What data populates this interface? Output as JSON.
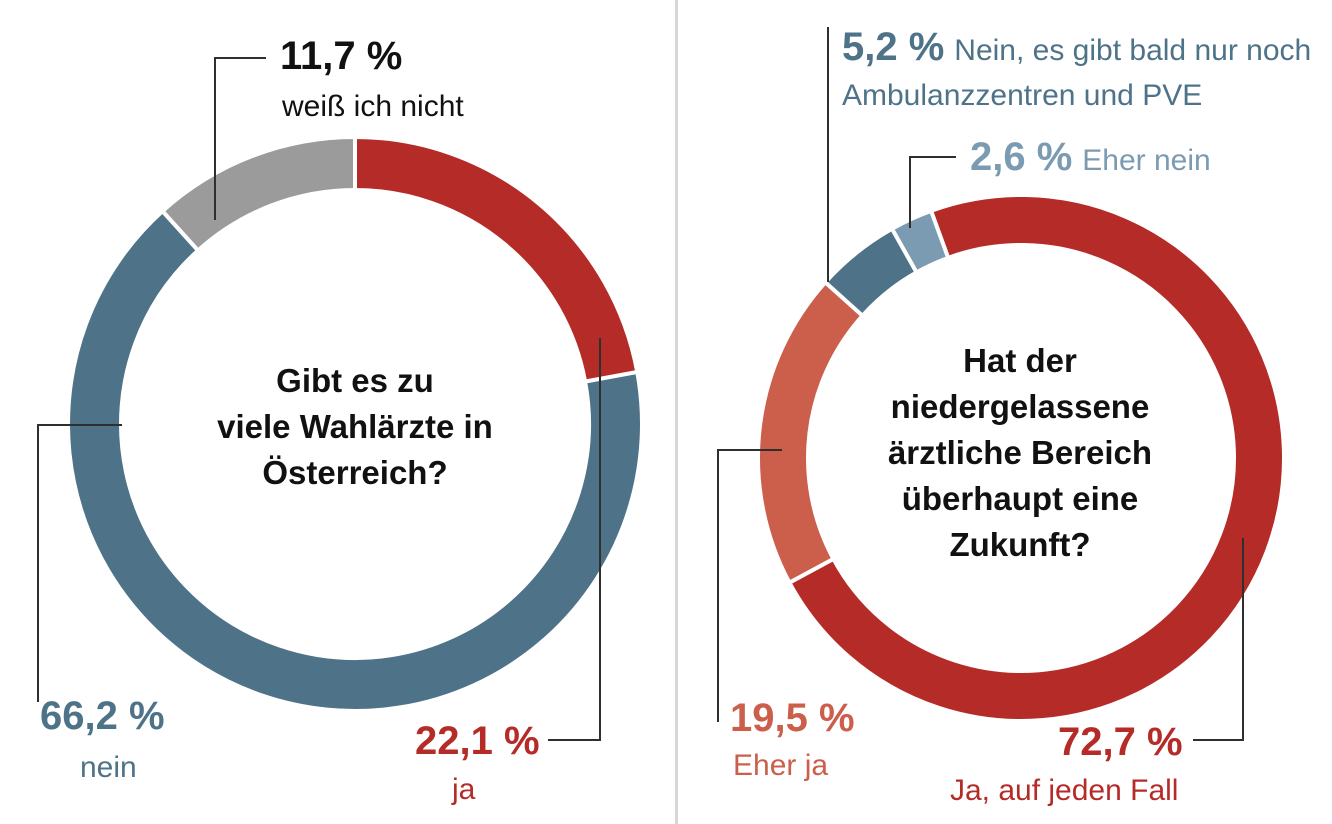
{
  "chart_data": [
    {
      "type": "pie",
      "donut": true,
      "title_lines": [
        "Gibt es zu",
        "viele Wahlärzte in",
        "Österreich?"
      ],
      "slices": [
        {
          "label": "ja",
          "value": 22.1,
          "value_label": "22,1 %",
          "color": "#b52b27",
          "text_color": "#b52b27"
        },
        {
          "label": "nein",
          "value": 66.2,
          "value_label": "66,2 %",
          "color": "#4e7389",
          "text_color": "#4e7389"
        },
        {
          "label": "weiß ich nicht",
          "value": 11.7,
          "value_label": "11,7 %",
          "color": "#9b9b9b",
          "text_color": "#111111"
        }
      ]
    },
    {
      "type": "pie",
      "donut": true,
      "title_lines": [
        "Hat der",
        "niedergelassene",
        "ärztliche Bereich",
        "überhaupt eine",
        "Zukunft?"
      ],
      "slices": [
        {
          "label": "Ja, auf jeden Fall",
          "value": 72.7,
          "value_label": "72,7 %",
          "color": "#b52b27",
          "text_color": "#b52b27"
        },
        {
          "label": "Eher ja",
          "value": 19.5,
          "value_label": "19,5 %",
          "color": "#cb5f4b",
          "text_color": "#cb5f4b"
        },
        {
          "label": "Nein, es gibt bald nur noch Ambulanzzentren und PVE",
          "value": 5.2,
          "value_label": "5,2 %",
          "color": "#4e7389",
          "text_color": "#4e7389"
        },
        {
          "label": "Eher nein",
          "value": 2.6,
          "value_label": "2,6 %",
          "color": "#7a9bb1",
          "text_color": "#7a9bb1"
        }
      ]
    }
  ]
}
